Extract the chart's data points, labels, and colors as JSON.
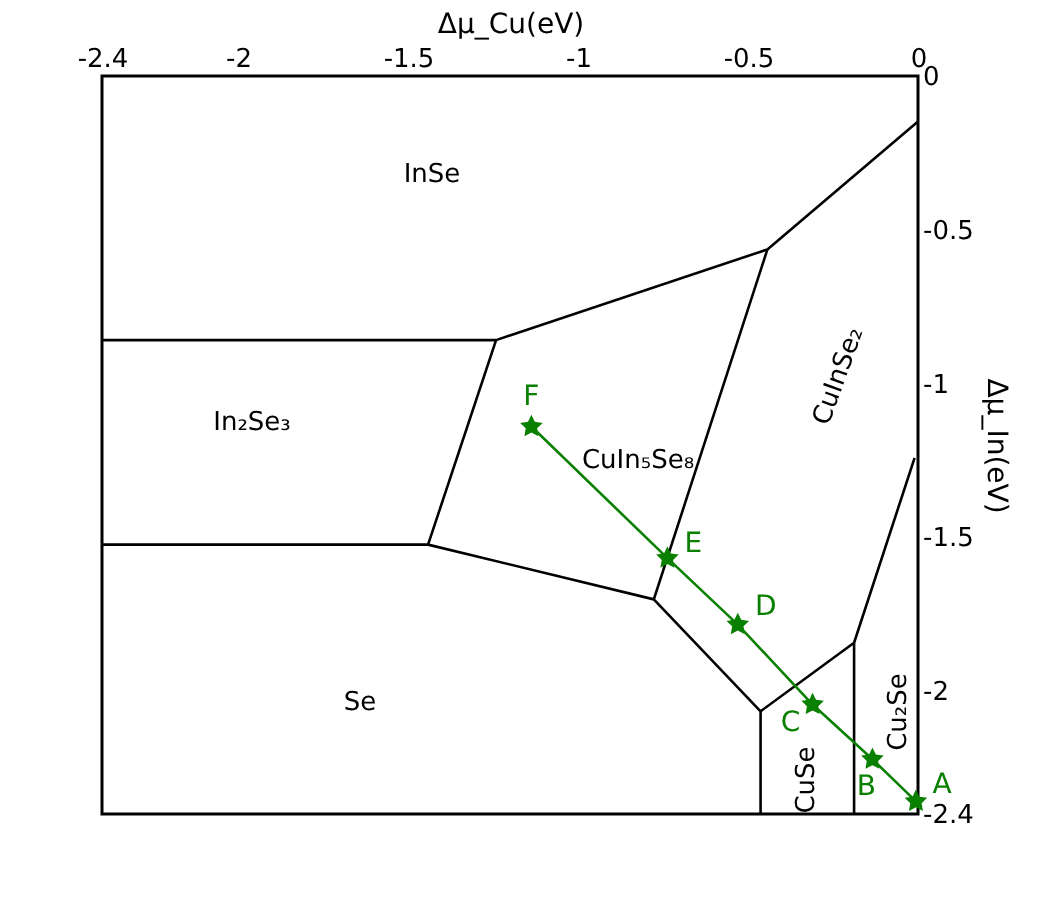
{
  "chart_data": {
    "type": "line",
    "xlabel": "Δμ_Cu(eV)",
    "ylabel": "Δμ_In(eV)",
    "xlim": [
      -2.4,
      0
    ],
    "xticks": [
      -2.4,
      -2,
      -1.5,
      -1,
      -0.5,
      0
    ],
    "ylim": [
      -2.4,
      0
    ],
    "yticks": [
      0,
      -0.5,
      -1,
      -1.5,
      -2,
      -2.4
    ],
    "grid": false,
    "marker": "none",
    "line_style": "solid",
    "series": [
      {
        "color": "#000000",
        "x": [
          -2.4,
          -1.241,
          -0.443,
          0
        ],
        "values": [
          -0.859,
          -0.859,
          -0.564,
          -0.148
        ]
      },
      {
        "color": "#000000",
        "x": [
          -2.4,
          -1.441,
          -0.777,
          -0.463,
          -0.463
        ],
        "values": [
          -1.524,
          -1.524,
          -1.702,
          -2.066,
          -2.4
        ]
      },
      {
        "color": "#000000",
        "x": [
          -1.241,
          -1.441
        ],
        "values": [
          -0.859,
          -1.524
        ]
      },
      {
        "color": "#000000",
        "x": [
          -0.443,
          -0.777
        ],
        "values": [
          -0.564,
          -1.702
        ]
      },
      {
        "color": "#000000",
        "x": [
          -0.463,
          -0.188,
          -0.01
        ],
        "values": [
          -2.066,
          -1.843,
          -1.242
        ]
      },
      {
        "color": "#000000",
        "x": [
          -0.188,
          -0.188
        ],
        "values": [
          -1.843,
          -2.4
        ]
      },
      {
        "color": "#0a8000",
        "marker": "star",
        "x": [
          -1.137,
          -0.737,
          -0.53,
          -0.31,
          -0.134,
          -0.006
        ],
        "values": [
          -1.14,
          -1.568,
          -1.784,
          -2.044,
          -2.222,
          -2.359
        ]
      }
    ],
    "annotations": [
      "InSe",
      "In₂Se₃",
      "CuIn₅Se₈",
      "CuInSe₂",
      "Se",
      "CuSe",
      "Cu₂Se",
      {
        "text": "F",
        "x": -1.137,
        "y": -1.14
      },
      {
        "text": "E",
        "x": -0.737,
        "y": -1.568
      },
      {
        "text": "D",
        "x": -0.53,
        "y": -1.784
      },
      {
        "text": "C",
        "x": -0.31,
        "y": -2.044
      },
      {
        "text": "B",
        "x": -0.134,
        "y": -2.222
      },
      {
        "text": "A",
        "x": -0.006,
        "y": -2.359
      }
    ]
  }
}
